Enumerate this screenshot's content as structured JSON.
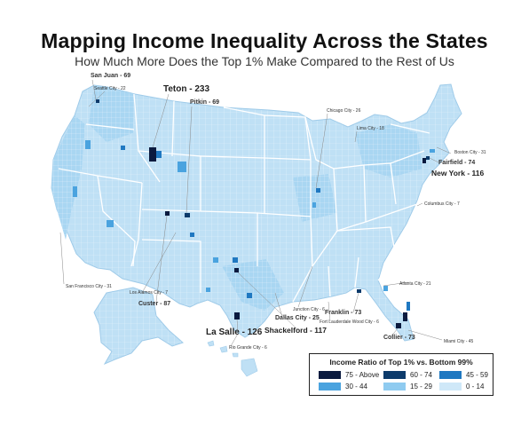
{
  "title": "Mapping Income Inequality Across the States",
  "subtitle": "How Much More Does the Top 1% Make Compared to the Rest of Us",
  "palette": {
    "background": "#ffffff",
    "state_border": "#ffffff",
    "cat_75_above": "#0a1a3f",
    "cat_60_74": "#0d3b6b",
    "cat_45_59": "#1f78c1",
    "cat_30_44": "#4aa3df",
    "cat_15_29": "#8fcbf0",
    "cat_0_14": "#cfe8f8"
  },
  "legend": {
    "title": "Income Ratio of Top 1% vs. Bottom 99%",
    "items": [
      {
        "label": "75 - Above",
        "color": "#0a1a3f"
      },
      {
        "label": "60 - 74",
        "color": "#0d3b6b"
      },
      {
        "label": "45 - 59",
        "color": "#1f78c1"
      },
      {
        "label": "30 - 44",
        "color": "#4aa3df"
      },
      {
        "label": "15 - 29",
        "color": "#8fcbf0"
      },
      {
        "label": "0 - 14",
        "color": "#cfe8f8"
      }
    ]
  },
  "annotations": {
    "san_juan": "San Juan - 69",
    "seattle": "Seattle City - 22",
    "teton": "Teton - 233",
    "pitkin": "Pitkin - 69",
    "chicago": "Chicago City - 26",
    "lima": "Lima City - 18",
    "boston": "Boston City - 31",
    "fairfield": "Fairfield - 74",
    "new_york": "New York - 116",
    "columbus": "Columbus City - 7",
    "san_francisco": "San Francisco City - 31",
    "los_alamos": "Los Alamos City - 7",
    "custer": "Custer - 87",
    "atlanta": "Atlanta City - 21",
    "franklin": "Franklin - 73",
    "junction": "Junction City - 6",
    "fort_lauderdale": "Fort Lauderdale Wood City - 6",
    "dallas": "Dallas City - 25",
    "la_salle": "La Salle - 126",
    "shackelford": "Shackelford - 117",
    "collier": "Collier - 73",
    "rio_grande": "Rio Grande City - 6",
    "miami": "Miami City - 45"
  }
}
